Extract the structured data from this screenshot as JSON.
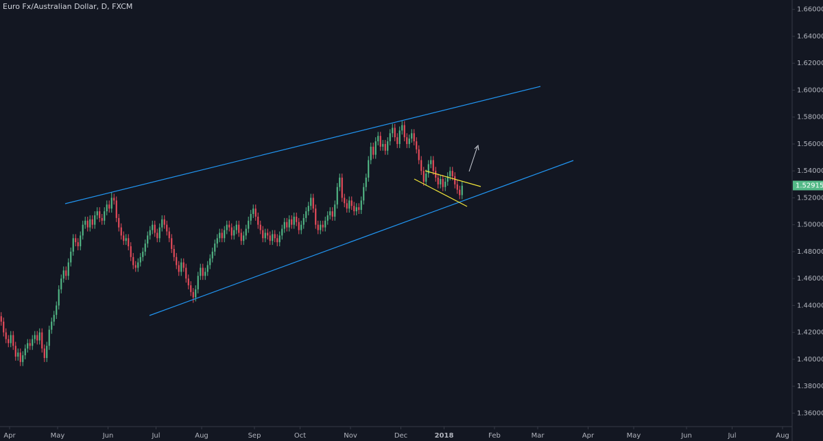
{
  "chart_data": {
    "type": "candlestick",
    "title": "Euro Fx/Australian Dollar, D, FXCM",
    "up_color": "#53b987",
    "down_color": "#eb4d5c",
    "open": [
      1.432,
      1.428,
      1.42,
      1.415,
      1.412,
      1.418,
      1.41,
      1.402,
      1.405,
      1.398,
      1.403,
      1.408,
      1.412,
      1.41,
      1.415,
      1.418,
      1.414,
      1.42,
      1.408,
      1.401,
      1.41,
      1.422,
      1.428,
      1.433,
      1.44,
      1.452,
      1.46,
      1.466,
      1.462,
      1.472,
      1.48,
      1.49,
      1.487,
      1.484,
      1.492,
      1.5,
      1.503,
      1.498,
      1.504,
      1.5,
      1.507,
      1.51,
      1.505,
      1.503,
      1.51,
      1.515,
      1.512,
      1.52,
      1.518,
      1.505,
      1.498,
      1.492,
      1.488,
      1.49,
      1.484,
      1.476,
      1.47,
      1.468,
      1.472,
      1.476,
      1.48,
      1.486,
      1.492,
      1.496,
      1.5,
      1.494,
      1.49,
      1.498,
      1.504,
      1.5,
      1.495,
      1.49,
      1.482,
      1.476,
      1.47,
      1.465,
      1.472,
      1.468,
      1.46,
      1.455,
      1.45,
      1.446,
      1.452,
      1.462,
      1.468,
      1.462,
      1.465,
      1.47,
      1.475,
      1.48,
      1.486,
      1.49,
      1.494,
      1.49,
      1.496,
      1.5,
      1.498,
      1.492,
      1.496,
      1.5,
      1.494,
      1.488,
      1.492,
      1.497,
      1.503,
      1.508,
      1.512,
      1.506,
      1.5,
      1.496,
      1.49,
      1.494,
      1.492,
      1.488,
      1.493,
      1.49,
      1.487,
      1.492,
      1.497,
      1.502,
      1.498,
      1.504,
      1.5,
      1.506,
      1.502,
      1.496,
      1.5,
      1.505,
      1.51,
      1.514,
      1.52,
      1.512,
      1.5,
      1.496,
      1.5,
      1.498,
      1.503,
      1.507,
      1.51,
      1.506,
      1.515,
      1.528,
      1.535,
      1.52,
      1.516,
      1.512,
      1.518,
      1.514,
      1.51,
      1.513,
      1.511,
      1.518,
      1.528,
      1.535,
      1.548,
      1.558,
      1.552,
      1.562,
      1.566,
      1.558,
      1.56,
      1.555,
      1.562,
      1.568,
      1.572,
      1.565,
      1.56,
      1.57,
      1.574,
      1.565,
      1.56,
      1.564,
      1.568,
      1.562,
      1.556,
      1.548,
      1.54,
      1.532,
      1.538,
      1.545,
      1.548,
      1.54,
      1.535,
      1.53,
      1.534,
      1.528,
      1.532,
      1.536,
      1.54,
      1.536,
      1.53,
      1.526,
      1.522
    ],
    "high": [
      1.435,
      1.431,
      1.423,
      1.418,
      1.421,
      1.421,
      1.413,
      1.408,
      1.408,
      1.406,
      1.411,
      1.415,
      1.415,
      1.418,
      1.421,
      1.421,
      1.423,
      1.423,
      1.411,
      1.413,
      1.425,
      1.431,
      1.436,
      1.443,
      1.455,
      1.463,
      1.469,
      1.469,
      1.475,
      1.483,
      1.493,
      1.493,
      1.49,
      1.495,
      1.503,
      1.506,
      1.506,
      1.507,
      1.507,
      1.51,
      1.513,
      1.513,
      1.508,
      1.513,
      1.518,
      1.518,
      1.524,
      1.523,
      1.521,
      1.508,
      1.501,
      1.495,
      1.493,
      1.493,
      1.487,
      1.479,
      1.473,
      1.475,
      1.479,
      1.483,
      1.489,
      1.495,
      1.499,
      1.503,
      1.503,
      1.497,
      1.501,
      1.507,
      1.507,
      1.503,
      1.498,
      1.493,
      1.485,
      1.479,
      1.473,
      1.475,
      1.475,
      1.471,
      1.463,
      1.458,
      1.453,
      1.455,
      1.465,
      1.471,
      1.471,
      1.468,
      1.473,
      1.478,
      1.483,
      1.489,
      1.493,
      1.497,
      1.497,
      1.499,
      1.503,
      1.503,
      1.501,
      1.499,
      1.503,
      1.503,
      1.497,
      1.495,
      1.5,
      1.506,
      1.511,
      1.515,
      1.515,
      1.509,
      1.503,
      1.499,
      1.497,
      1.497,
      1.495,
      1.496,
      1.496,
      1.493,
      1.495,
      1.5,
      1.505,
      1.505,
      1.507,
      1.507,
      1.509,
      1.509,
      1.505,
      1.503,
      1.508,
      1.513,
      1.517,
      1.523,
      1.523,
      1.515,
      1.503,
      1.503,
      1.503,
      1.506,
      1.51,
      1.513,
      1.513,
      1.518,
      1.531,
      1.538,
      1.538,
      1.523,
      1.519,
      1.521,
      1.521,
      1.517,
      1.516,
      1.516,
      1.521,
      1.531,
      1.538,
      1.551,
      1.561,
      1.561,
      1.565,
      1.569,
      1.569,
      1.563,
      1.563,
      1.565,
      1.571,
      1.575,
      1.575,
      1.568,
      1.573,
      1.577,
      1.577,
      1.568,
      1.567,
      1.571,
      1.571,
      1.565,
      1.559,
      1.551,
      1.543,
      1.541,
      1.548,
      1.551,
      1.551,
      1.543,
      1.538,
      1.537,
      1.537,
      1.535,
      1.539,
      1.543,
      1.543,
      1.539,
      1.533,
      1.529,
      1.532
    ],
    "low": [
      1.425,
      1.417,
      1.412,
      1.409,
      1.409,
      1.407,
      1.399,
      1.399,
      1.395,
      1.395,
      1.4,
      1.405,
      1.407,
      1.407,
      1.412,
      1.411,
      1.411,
      1.405,
      1.398,
      1.398,
      1.407,
      1.419,
      1.425,
      1.43,
      1.437,
      1.449,
      1.457,
      1.459,
      1.459,
      1.469,
      1.477,
      1.484,
      1.481,
      1.481,
      1.489,
      1.497,
      1.495,
      1.495,
      1.497,
      1.497,
      1.504,
      1.502,
      1.5,
      1.5,
      1.507,
      1.509,
      1.509,
      1.515,
      1.502,
      1.495,
      1.489,
      1.485,
      1.485,
      1.481,
      1.473,
      1.467,
      1.465,
      1.465,
      1.469,
      1.473,
      1.477,
      1.483,
      1.489,
      1.493,
      1.491,
      1.487,
      1.487,
      1.495,
      1.497,
      1.492,
      1.487,
      1.479,
      1.473,
      1.467,
      1.462,
      1.462,
      1.465,
      1.457,
      1.452,
      1.447,
      1.442,
      1.443,
      1.449,
      1.459,
      1.459,
      1.459,
      1.462,
      1.467,
      1.472,
      1.477,
      1.483,
      1.487,
      1.487,
      1.487,
      1.493,
      1.495,
      1.489,
      1.489,
      1.493,
      1.491,
      1.485,
      1.485,
      1.489,
      1.494,
      1.5,
      1.505,
      1.503,
      1.497,
      1.493,
      1.487,
      1.487,
      1.489,
      1.485,
      1.485,
      1.487,
      1.484,
      1.484,
      1.489,
      1.494,
      1.495,
      1.495,
      1.497,
      1.497,
      1.499,
      1.493,
      1.493,
      1.497,
      1.502,
      1.507,
      1.511,
      1.509,
      1.497,
      1.493,
      1.493,
      1.495,
      1.495,
      1.5,
      1.504,
      1.503,
      1.503,
      1.512,
      1.525,
      1.517,
      1.513,
      1.509,
      1.509,
      1.511,
      1.507,
      1.507,
      1.508,
      1.508,
      1.515,
      1.525,
      1.532,
      1.545,
      1.549,
      1.549,
      1.559,
      1.555,
      1.555,
      1.552,
      1.552,
      1.559,
      1.565,
      1.562,
      1.557,
      1.557,
      1.567,
      1.562,
      1.557,
      1.557,
      1.561,
      1.559,
      1.553,
      1.545,
      1.537,
      1.529,
      1.529,
      1.535,
      1.542,
      1.537,
      1.532,
      1.527,
      1.527,
      1.525,
      1.525,
      1.529,
      1.533,
      1.533,
      1.527,
      1.523,
      1.519,
      1.519
    ],
    "close": [
      1.428,
      1.42,
      1.415,
      1.412,
      1.418,
      1.41,
      1.402,
      1.405,
      1.398,
      1.403,
      1.408,
      1.412,
      1.41,
      1.415,
      1.418,
      1.414,
      1.42,
      1.408,
      1.401,
      1.41,
      1.422,
      1.428,
      1.433,
      1.44,
      1.452,
      1.46,
      1.466,
      1.462,
      1.472,
      1.48,
      1.49,
      1.487,
      1.484,
      1.492,
      1.5,
      1.503,
      1.498,
      1.504,
      1.5,
      1.507,
      1.51,
      1.505,
      1.503,
      1.51,
      1.515,
      1.512,
      1.52,
      1.518,
      1.505,
      1.498,
      1.492,
      1.488,
      1.49,
      1.484,
      1.476,
      1.47,
      1.468,
      1.472,
      1.476,
      1.48,
      1.486,
      1.492,
      1.496,
      1.5,
      1.494,
      1.49,
      1.498,
      1.504,
      1.5,
      1.495,
      1.49,
      1.482,
      1.476,
      1.47,
      1.465,
      1.472,
      1.468,
      1.46,
      1.455,
      1.45,
      1.446,
      1.452,
      1.462,
      1.468,
      1.462,
      1.465,
      1.47,
      1.475,
      1.48,
      1.486,
      1.49,
      1.494,
      1.49,
      1.496,
      1.5,
      1.498,
      1.492,
      1.496,
      1.5,
      1.494,
      1.488,
      1.492,
      1.497,
      1.503,
      1.508,
      1.512,
      1.506,
      1.5,
      1.496,
      1.49,
      1.494,
      1.492,
      1.488,
      1.493,
      1.49,
      1.487,
      1.492,
      1.497,
      1.502,
      1.498,
      1.504,
      1.5,
      1.506,
      1.502,
      1.496,
      1.5,
      1.505,
      1.51,
      1.514,
      1.52,
      1.512,
      1.5,
      1.496,
      1.5,
      1.498,
      1.503,
      1.507,
      1.51,
      1.506,
      1.515,
      1.528,
      1.535,
      1.52,
      1.516,
      1.512,
      1.518,
      1.514,
      1.51,
      1.513,
      1.511,
      1.518,
      1.528,
      1.535,
      1.548,
      1.558,
      1.552,
      1.562,
      1.566,
      1.558,
      1.56,
      1.555,
      1.562,
      1.568,
      1.572,
      1.565,
      1.56,
      1.57,
      1.574,
      1.565,
      1.56,
      1.564,
      1.568,
      1.562,
      1.556,
      1.548,
      1.54,
      1.532,
      1.538,
      1.545,
      1.548,
      1.54,
      1.535,
      1.53,
      1.534,
      1.528,
      1.532,
      1.536,
      1.54,
      1.536,
      1.53,
      1.526,
      1.522,
      1.529
    ],
    "last_price": 1.52915,
    "xlim": [
      0,
      330
    ],
    "xticks": [
      {
        "value": 4,
        "label": "Apr"
      },
      {
        "value": 24,
        "label": "May"
      },
      {
        "value": 45,
        "label": "Jun"
      },
      {
        "value": 65,
        "label": "Jul"
      },
      {
        "value": 84,
        "label": "Aug"
      },
      {
        "value": 106,
        "label": "Sep"
      },
      {
        "value": 125,
        "label": "Oct"
      },
      {
        "value": 146,
        "label": "Nov"
      },
      {
        "value": 167,
        "label": "Dec"
      },
      {
        "value": 185,
        "label": "2018"
      },
      {
        "value": 206,
        "label": "Feb"
      },
      {
        "value": 224,
        "label": "Mar"
      },
      {
        "value": 245,
        "label": "Apr"
      },
      {
        "value": 264,
        "label": "May"
      },
      {
        "value": 286,
        "label": "Jun"
      },
      {
        "value": 305,
        "label": "Jul"
      },
      {
        "value": 326,
        "label": "Aug"
      }
    ],
    "ylim": [
      1.35,
      1.667
    ],
    "yticks": [
      {
        "value": 1.36,
        "label": "1.36000"
      },
      {
        "value": 1.38,
        "label": "1.38000"
      },
      {
        "value": 1.4,
        "label": "1.40000"
      },
      {
        "value": 1.42,
        "label": "1.42000"
      },
      {
        "value": 1.44,
        "label": "1.44000"
      },
      {
        "value": 1.46,
        "label": "1.46000"
      },
      {
        "value": 1.48,
        "label": "1.48000"
      },
      {
        "value": 1.5,
        "label": "1.50000"
      },
      {
        "value": 1.52,
        "label": "1.52000"
      },
      {
        "value": 1.54,
        "label": "1.54000"
      },
      {
        "value": 1.56,
        "label": "1.56000"
      },
      {
        "value": 1.58,
        "label": "1.58000"
      },
      {
        "value": 1.6,
        "label": "1.60000"
      },
      {
        "value": 1.62,
        "label": "1.62000"
      },
      {
        "value": 1.64,
        "label": "1.64000"
      },
      {
        "value": 1.66,
        "label": "1.66000"
      }
    ]
  }
}
